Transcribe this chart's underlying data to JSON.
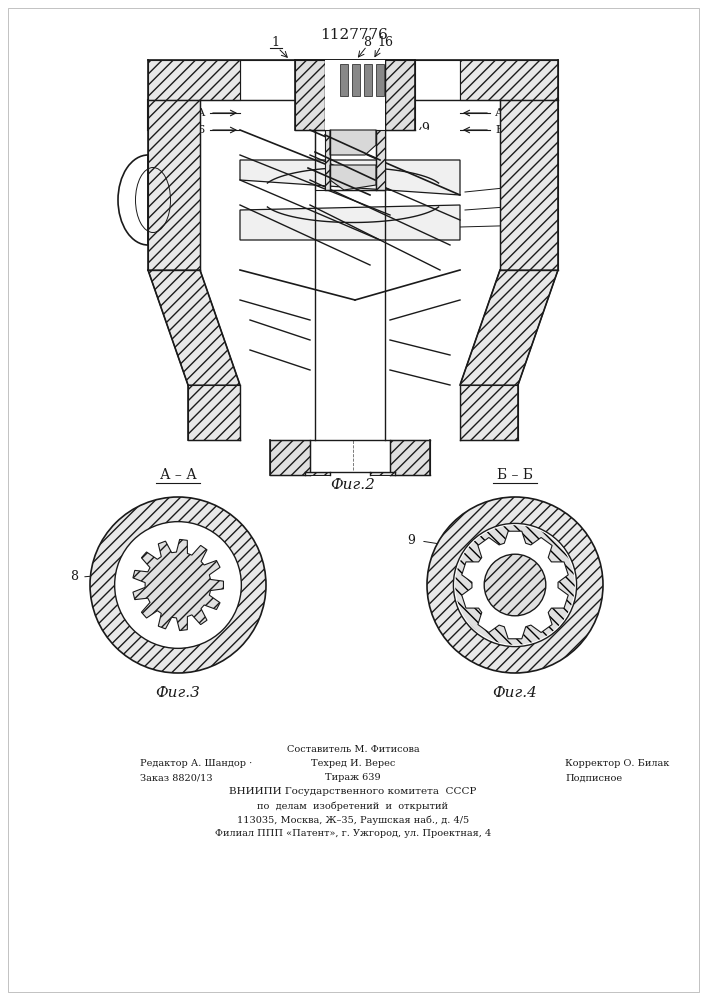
{
  "patent_number": "1127776",
  "fig2_caption": "Фиг.2",
  "fig3_caption": "Фиг.3",
  "fig4_caption": "Фиг.4",
  "footer_line1": "Составитель М. Фитисова",
  "footer_line2_left": "Редактор А. Шандор ·",
  "footer_line2_mid": "Техред И. Верес",
  "footer_line2_right": "Корректор О. Билак",
  "footer_line3_left": "Заказ 8820/13",
  "footer_line3_mid": "Тираж 639",
  "footer_line3_right": "Подписное",
  "footer_line4": "ВНИИПИ Государственного комитета  СССР",
  "footer_line5": "по  делам  изобретений  и  открытий",
  "footer_line6": "113035, Москва, Ж–35, Раушская наб., д. 4/5",
  "footer_line7": "Филиал ППП «Патент», г. Ужгород, ул. Проектная, 4",
  "line_color": "#1a1a1a"
}
